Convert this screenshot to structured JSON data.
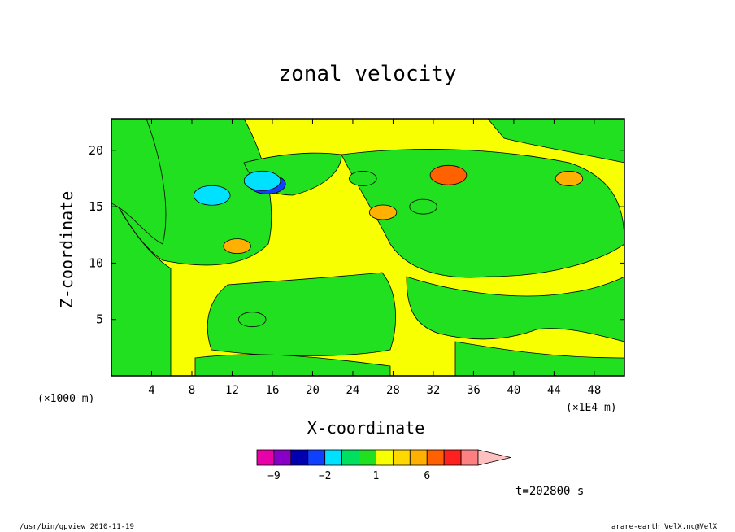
{
  "chart_data": {
    "type": "heatmap",
    "title": "zonal velocity",
    "xlabel": "X-coordinate",
    "ylabel": "Z-coordinate",
    "x_unit_label": "(×1000 m)",
    "z_unit_label": "(×1E4 m)",
    "time_label": "t=202800 s",
    "xlim": [
      0,
      51
    ],
    "ylim": [
      0,
      22.8
    ],
    "x_ticks": [
      4,
      8,
      12,
      16,
      20,
      24,
      28,
      32,
      36,
      40,
      44,
      48
    ],
    "y_ticks": [
      5,
      10,
      15,
      20
    ],
    "colorbar": {
      "levels": [
        -12,
        -9,
        -6,
        -3,
        -2,
        -1,
        0,
        1,
        2,
        3,
        6,
        9,
        12
      ],
      "tick_labels": [
        {
          "label": "−9",
          "at": -9
        },
        {
          "label": "−2",
          "at": -2
        },
        {
          "label": "1",
          "at": 1
        },
        {
          "label": "6",
          "at": 6
        }
      ],
      "colors": [
        "#e800a8",
        "#8800c8",
        "#0000b0",
        "#1040ff",
        "#00e0ff",
        "#00e060",
        "#20e020",
        "#f8ff00",
        "#ffd800",
        "#ffb000",
        "#ff6000",
        "#ff2020",
        "#ff8080",
        "#ffc0c0"
      ]
    },
    "features": [
      {
        "x": 15.5,
        "z": 17.0,
        "level": -6
      },
      {
        "x": 15.0,
        "z": 17.3,
        "level": -3
      },
      {
        "x": 10.0,
        "z": 16.0,
        "level": -3
      },
      {
        "x": 25.0,
        "z": 17.5,
        "level": -1
      },
      {
        "x": 31.0,
        "z": 15.0,
        "level": -1
      },
      {
        "x": 14.0,
        "z": 5.0,
        "level": -1
      },
      {
        "x": 33.5,
        "z": 17.8,
        "level": 3
      },
      {
        "x": 12.5,
        "z": 11.5,
        "level": 2
      },
      {
        "x": 45.5,
        "z": 17.5,
        "level": 2
      },
      {
        "x": 27.0,
        "z": 14.5,
        "level": 2
      }
    ]
  },
  "footer": {
    "left": "/usr/bin/gpview   2010-11-19",
    "right": "arare-earth_VelX.nc@VelX"
  }
}
